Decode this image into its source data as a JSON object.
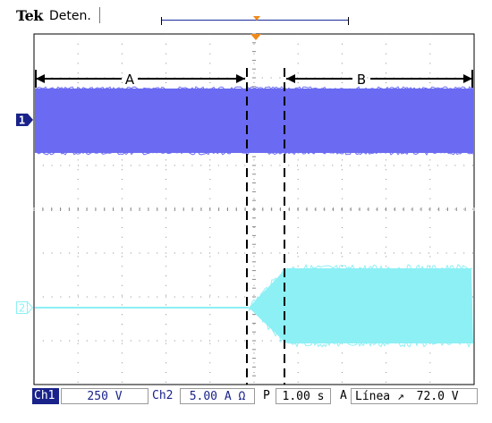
{
  "header": {
    "brand": "Tek",
    "status": "Deten."
  },
  "display": {
    "ch1_marker": "1",
    "ch2_marker": "2",
    "region_a_label": "A",
    "region_b_label": "B"
  },
  "footer": {
    "ch1_label": "Ch1",
    "ch1_scale": "250 V",
    "ch2_label": "Ch2",
    "ch2_scale": "5.00 A Ω",
    "timebase_label": "P",
    "timebase_value": "1.00 s",
    "trigger_label": "A",
    "trigger_source": "Línea",
    "trigger_slope_glyph": "↗",
    "trigger_level": "72.0 V"
  },
  "colors": {
    "ch1": "#6a6af2",
    "ch2": "#8cf0f5",
    "marker_dark": "#1a238a",
    "trigger": "#ef8a1c"
  }
}
